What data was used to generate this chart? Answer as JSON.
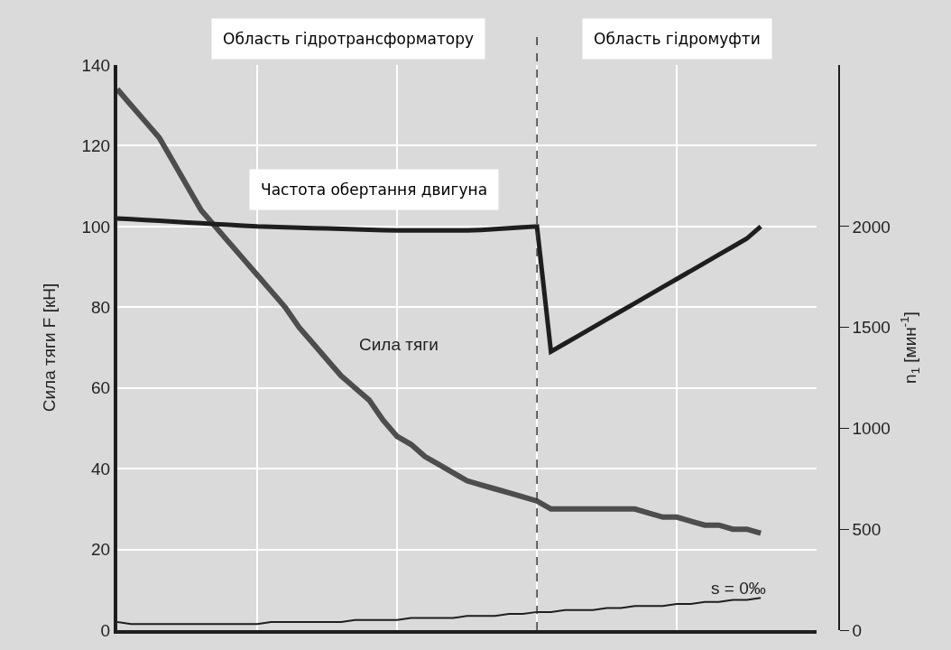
{
  "chart_data": {
    "type": "line",
    "ylabel": "Сила тяги F [кН]",
    "y2label": "n$_{1}$ [мин$^{-1}$]",
    "categories": [
      null,
      null,
      null,
      null,
      null,
      null,
      null,
      null,
      null,
      null,
      null,
      null,
      null,
      null,
      null,
      null,
      null,
      null,
      null,
      null,
      null,
      null,
      null,
      null,
      null,
      null,
      null,
      null,
      null,
      null,
      null,
      null,
      null,
      null,
      null,
      null,
      null,
      null,
      null,
      null,
      null,
      null,
      null,
      null,
      null,
      null,
      null
    ],
    "ylim": [
      0,
      140
    ],
    "yticks": [
      0,
      20,
      40,
      60,
      80,
      100,
      120,
      140
    ],
    "y2lim": [
      0,
      2800
    ],
    "y2ticks": [
      0,
      500,
      1000,
      1500,
      2000
    ],
    "grid": true,
    "line_style": "solid",
    "series": [
      {
        "color": "#4d4d4d",
        "values": [
          134,
          130,
          126,
          122,
          116,
          110,
          104,
          100,
          96,
          92,
          88,
          84,
          80,
          75,
          71,
          67,
          63,
          60,
          57,
          52,
          48,
          46,
          43,
          41,
          39,
          37,
          36,
          35,
          34,
          33,
          32,
          30,
          30,
          30,
          30,
          30,
          30,
          30,
          29,
          28,
          28,
          27,
          26,
          26,
          25,
          25,
          24
        ]
      },
      {
        "color": "#1e1e1e",
        "axis": "y2",
        "values": [
          2040,
          2036,
          2032,
          2028,
          2024,
          2020,
          2016,
          2012,
          2008,
          2004,
          2000,
          1998,
          1996,
          1994,
          1992,
          1990,
          1988,
          1986,
          1984,
          1982,
          1980,
          1980,
          1980,
          1980,
          1980,
          1980,
          1983,
          1987,
          1992,
          1996,
          2000,
          1380,
          1420,
          1460,
          1500,
          1540,
          1580,
          1620,
          1660,
          1700,
          1740,
          1780,
          1820,
          1860,
          1900,
          1940,
          2000
        ]
      },
      {
        "color": "#1e1e1e",
        "values": [
          2,
          1.5,
          1.5,
          1.5,
          1.5,
          1.5,
          1.5,
          1.5,
          1.5,
          1.5,
          1.5,
          2,
          2,
          2,
          2,
          2,
          2,
          2.5,
          2.5,
          2.5,
          2.5,
          3,
          3,
          3,
          3,
          3.5,
          3.5,
          3.5,
          4,
          4,
          4.5,
          4.5,
          5,
          5,
          5,
          5.5,
          5.5,
          6,
          6,
          6,
          6.5,
          6.5,
          7,
          7,
          7.5,
          7.5,
          8
        ]
      }
    ],
    "annotations": [
      "Область гідротрансформатору",
      "Область гідромуфти",
      "Частота обертання двигуна",
      "Сила тяги",
      "s = 0‰"
    ]
  }
}
